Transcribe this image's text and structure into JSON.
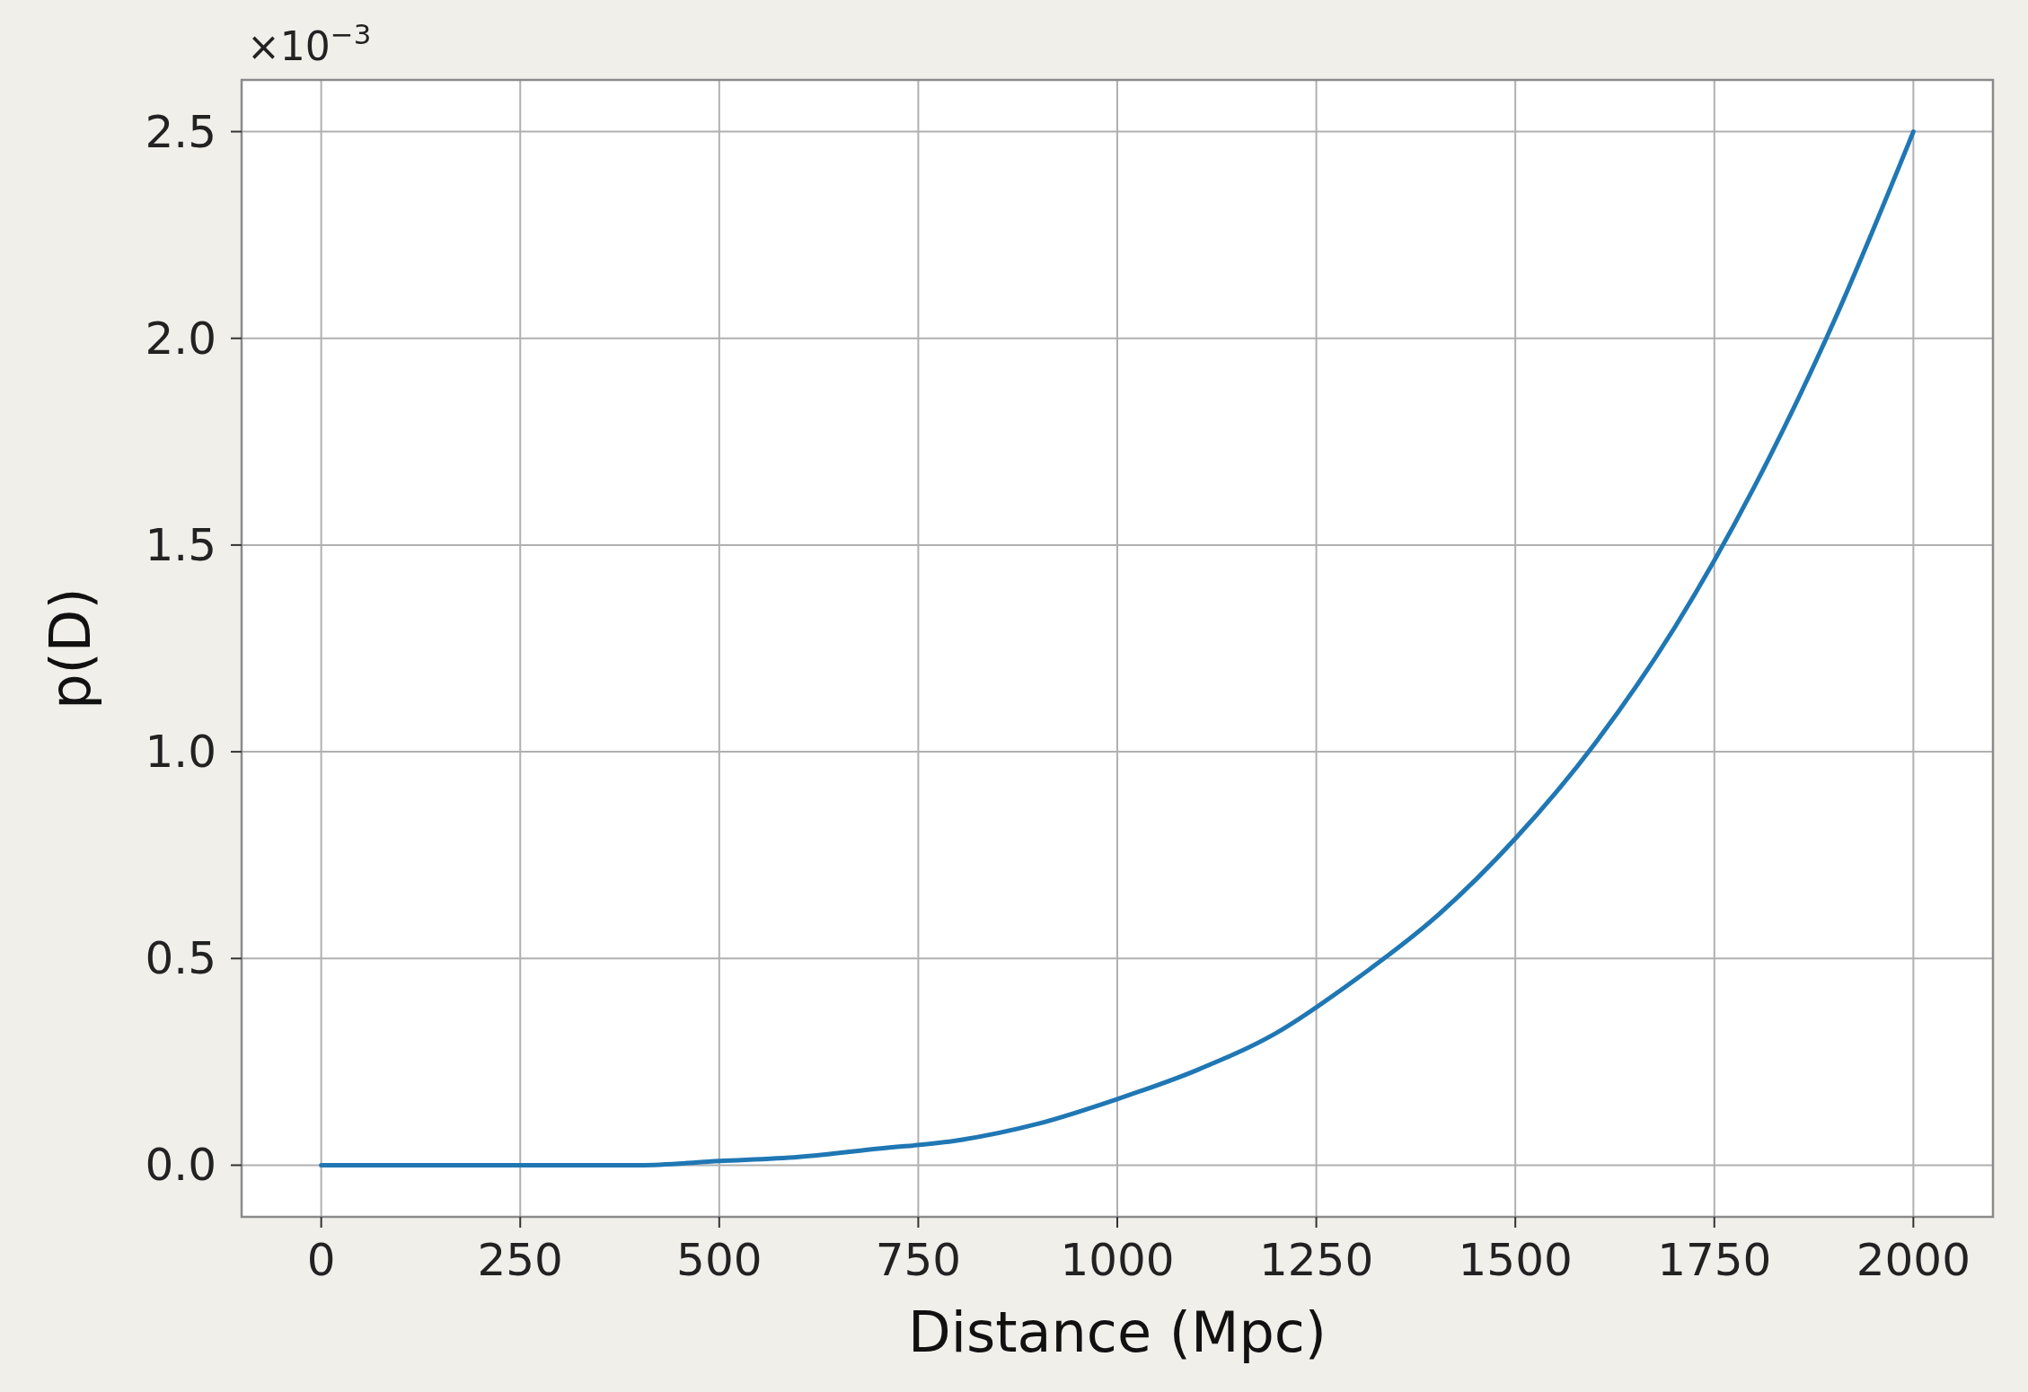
{
  "chart_data": {
    "type": "line",
    "xlabel": "Distance (Mpc)",
    "ylabel": "p(D)",
    "annotations": [
      "×10$^{−3}$"
    ],
    "x": [
      0,
      100,
      200,
      300,
      400,
      500,
      600,
      700,
      800,
      900,
      1000,
      1100,
      1200,
      1300,
      1400,
      1500,
      1600,
      1700,
      1800,
      1900,
      2000
    ],
    "series": [
      {
        "color": "#1f77b4",
        "values": [
          0,
          0,
          0,
          0,
          0,
          0.01,
          0.02,
          0.04,
          0.06,
          0.1,
          0.16,
          0.23,
          0.32,
          0.45,
          0.6,
          0.79,
          1.02,
          1.3,
          1.64,
          2.04,
          2.5
        ]
      }
    ],
    "xlim": [
      -100,
      2100
    ],
    "ylim": [
      -0.125,
      2.625
    ],
    "xticks": [
      0,
      250,
      500,
      750,
      1000,
      1250,
      1500,
      1750,
      2000
    ],
    "yticks": [
      {
        "value": 0,
        "label": "0.0"
      },
      {
        "value": 0.5,
        "label": "0.5"
      },
      {
        "value": 1,
        "label": "1.0"
      },
      {
        "value": 1.5,
        "label": "1.5"
      },
      {
        "value": 2,
        "label": "2.0"
      },
      {
        "value": 2.5,
        "label": "2.5"
      }
    ],
    "grid": true,
    "marker": "none",
    "line_style": "solid"
  }
}
